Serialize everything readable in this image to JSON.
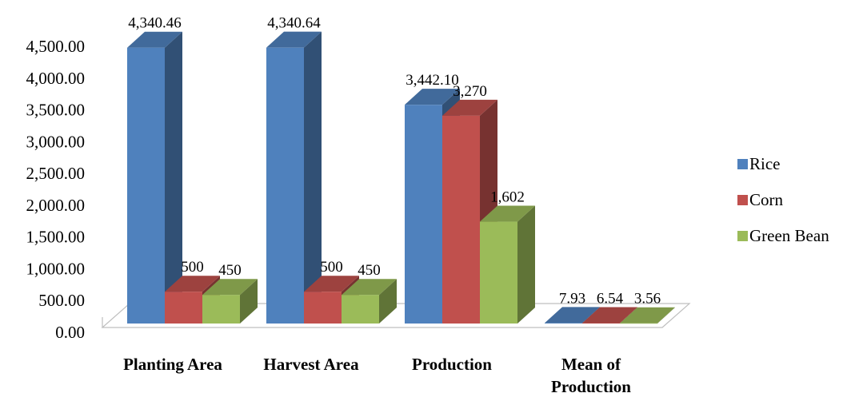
{
  "chart_data": {
    "type": "bar",
    "style": "3d-clustered-column",
    "categories": [
      [
        "Planting Area"
      ],
      [
        "Harvest Area"
      ],
      [
        "Production"
      ],
      [
        "Mean of",
        "Production"
      ]
    ],
    "series": [
      {
        "name": "Rice",
        "color": "#4F81BD",
        "values": [
          4340.46,
          4340.64,
          3442.1,
          7.93
        ],
        "labels": [
          "4,340.46",
          "4,340.64",
          "3,442.10",
          "7.93"
        ]
      },
      {
        "name": "Corn",
        "color": "#C0504D",
        "values": [
          500,
          500,
          3270,
          6.54
        ],
        "labels": [
          "500",
          "500",
          "3,270",
          "6.54"
        ]
      },
      {
        "name": "Green Bean",
        "color": "#9BBB59",
        "values": [
          450,
          450,
          1602,
          3.56
        ],
        "labels": [
          "450",
          "450",
          "1,602",
          "3.56"
        ]
      }
    ],
    "y_ticks": [
      "0.00",
      "500.00",
      "1,000.00",
      "1,500.00",
      "2,000.00",
      "2,500.00",
      "3,000.00",
      "3,500.00",
      "4,000.00",
      "4,500.00"
    ],
    "ylim": [
      0,
      4500
    ],
    "grid": false,
    "legend": "right"
  }
}
